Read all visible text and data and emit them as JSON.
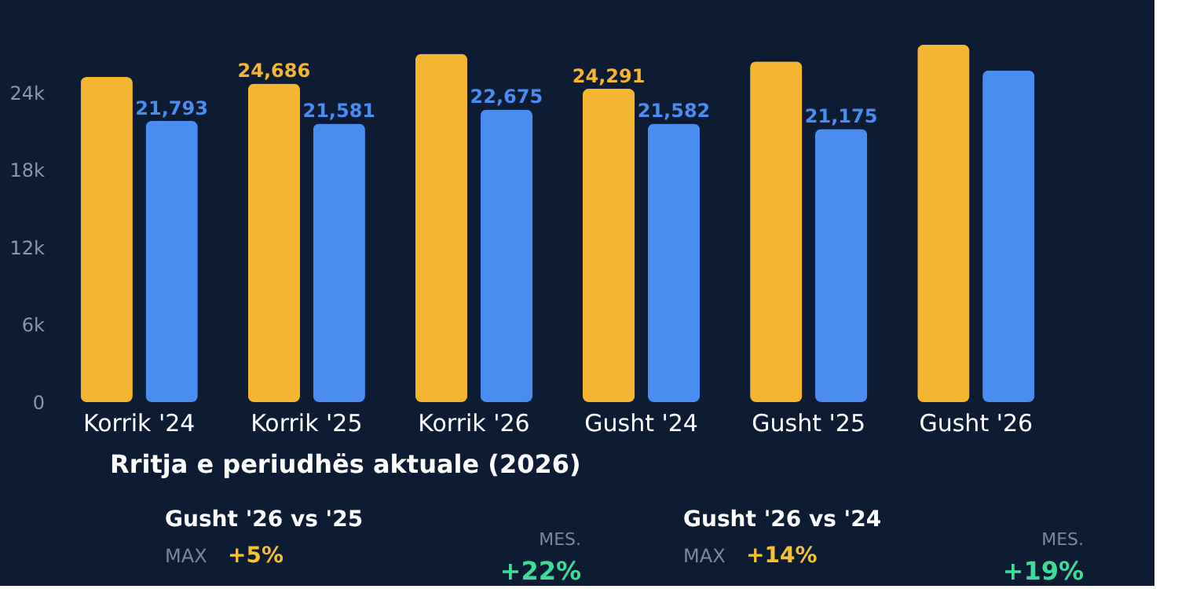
{
  "chart_data": {
    "type": "bar",
    "categories": [
      "Korrik '24",
      "Korrik '25",
      "Korrik '26",
      "Gusht '24",
      "Gusht '25",
      "Gusht '26"
    ],
    "series": [
      {
        "color": "#f4b630",
        "values": [
          25200,
          24686,
          27000,
          24291,
          26400,
          27700
        ],
        "value_labels": [
          null,
          "24,686",
          null,
          "24,291",
          null,
          null
        ]
      },
      {
        "color": "#4b8cf0",
        "values": [
          21793,
          21581,
          22675,
          21582,
          21175,
          25700
        ],
        "value_labels": [
          "21,793",
          "21,581",
          "22,675",
          "21,582",
          "21,175",
          null
        ]
      }
    ],
    "ylim": [
      0,
      28000
    ],
    "yticks": [
      0,
      {
        "value": 6000,
        "label": "6k"
      },
      {
        "value": 12000,
        "label": "12k"
      },
      {
        "value": 18000,
        "label": "18k"
      },
      {
        "value": 24000,
        "label": "24k"
      }
    ],
    "grid": false,
    "annotations": [
      "Rritja e periudhës aktuale (2026)",
      "Gusht '26 vs '25",
      "MAX",
      "+5%",
      "MES.",
      "+22%",
      "Gusht '26 vs '24",
      "MAX",
      "+14%",
      "MES.",
      "+19%"
    ]
  }
}
